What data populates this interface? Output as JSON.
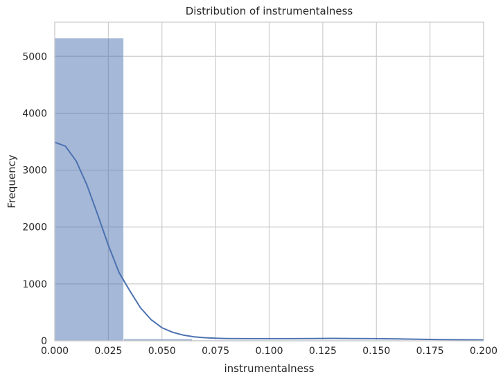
{
  "chart_data": {
    "type": "bar",
    "title": "Distribution of instrumentalness",
    "xlabel": "instrumentalness",
    "ylabel": "Frequency",
    "xlim": [
      0,
      0.2
    ],
    "ylim": [
      0,
      5600
    ],
    "xticks": [
      0,
      0.025,
      0.05,
      0.075,
      0.1,
      0.125,
      0.15,
      0.175,
      0.2
    ],
    "xtick_labels": [
      "0.000",
      "0.025",
      "0.050",
      "0.075",
      "0.100",
      "0.125",
      "0.150",
      "0.175",
      "0.200"
    ],
    "yticks": [
      0,
      1000,
      2000,
      3000,
      4000,
      5000
    ],
    "ytick_labels": [
      "0",
      "1000",
      "2000",
      "3000",
      "4000",
      "5000"
    ],
    "grid": true,
    "bins": [
      {
        "x0": 0.0,
        "x1": 0.0321,
        "count": 5320
      },
      {
        "x0": 0.0321,
        "x1": 0.0642,
        "count": 35
      },
      {
        "x0": 0.0642,
        "x1": 0.0963,
        "count": 12
      },
      {
        "x0": 0.0963,
        "x1": 0.1284,
        "count": 10
      },
      {
        "x0": 0.1284,
        "x1": 0.1605,
        "count": 9
      },
      {
        "x0": 0.1605,
        "x1": 0.1926,
        "count": 8
      },
      {
        "x0": 0.1926,
        "x1": 0.2,
        "count": 6
      }
    ],
    "kde": {
      "x": [
        0.0,
        0.005,
        0.01,
        0.015,
        0.02,
        0.025,
        0.03,
        0.035,
        0.04,
        0.045,
        0.05,
        0.055,
        0.06,
        0.065,
        0.07,
        0.075,
        0.08,
        0.09,
        0.1,
        0.11,
        0.12,
        0.13,
        0.14,
        0.15,
        0.16,
        0.17,
        0.18,
        0.19,
        0.2
      ],
      "y": [
        3490,
        3420,
        3160,
        2740,
        2220,
        1680,
        1200,
        880,
        580,
        370,
        230,
        150,
        100,
        70,
        55,
        45,
        40,
        38,
        38,
        38,
        40,
        42,
        40,
        38,
        33,
        28,
        22,
        18,
        15
      ]
    },
    "colors": {
      "bar": "#4c72b0",
      "line": "#4c72b0",
      "grid": "#cccccc",
      "spine": "#cccccc"
    }
  }
}
